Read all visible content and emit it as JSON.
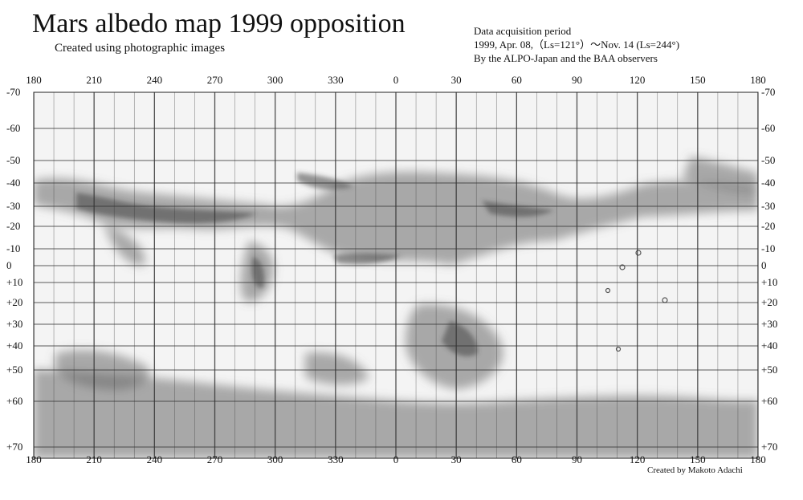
{
  "header": {
    "title": "Mars albedo map 1999 opposition",
    "subtitle": "Created using photographic images"
  },
  "info": {
    "line1": "Data acquisition period",
    "line2": "1999, Apr. 08,（Ls=121°）～Nov. 14 (Ls=244°)",
    "line3": "By the ALPO-Japan and the BAA observers"
  },
  "credit": "Created by Makoto Adachi",
  "map": {
    "longitude_labels": [
      "180",
      "210",
      "240",
      "270",
      "300",
      "330",
      "0",
      "30",
      "60",
      "90",
      "120",
      "150",
      "180"
    ],
    "latitude_labels": [
      "-70",
      "-60",
      "-50",
      "-40",
      "-30",
      "-20",
      "-10",
      "0",
      "+10",
      "+20",
      "+30",
      "+40",
      "+50",
      "+60",
      "+70"
    ],
    "background_color": "#f4f4f4",
    "dark_color": "#555555",
    "grid_color": "#333333"
  }
}
